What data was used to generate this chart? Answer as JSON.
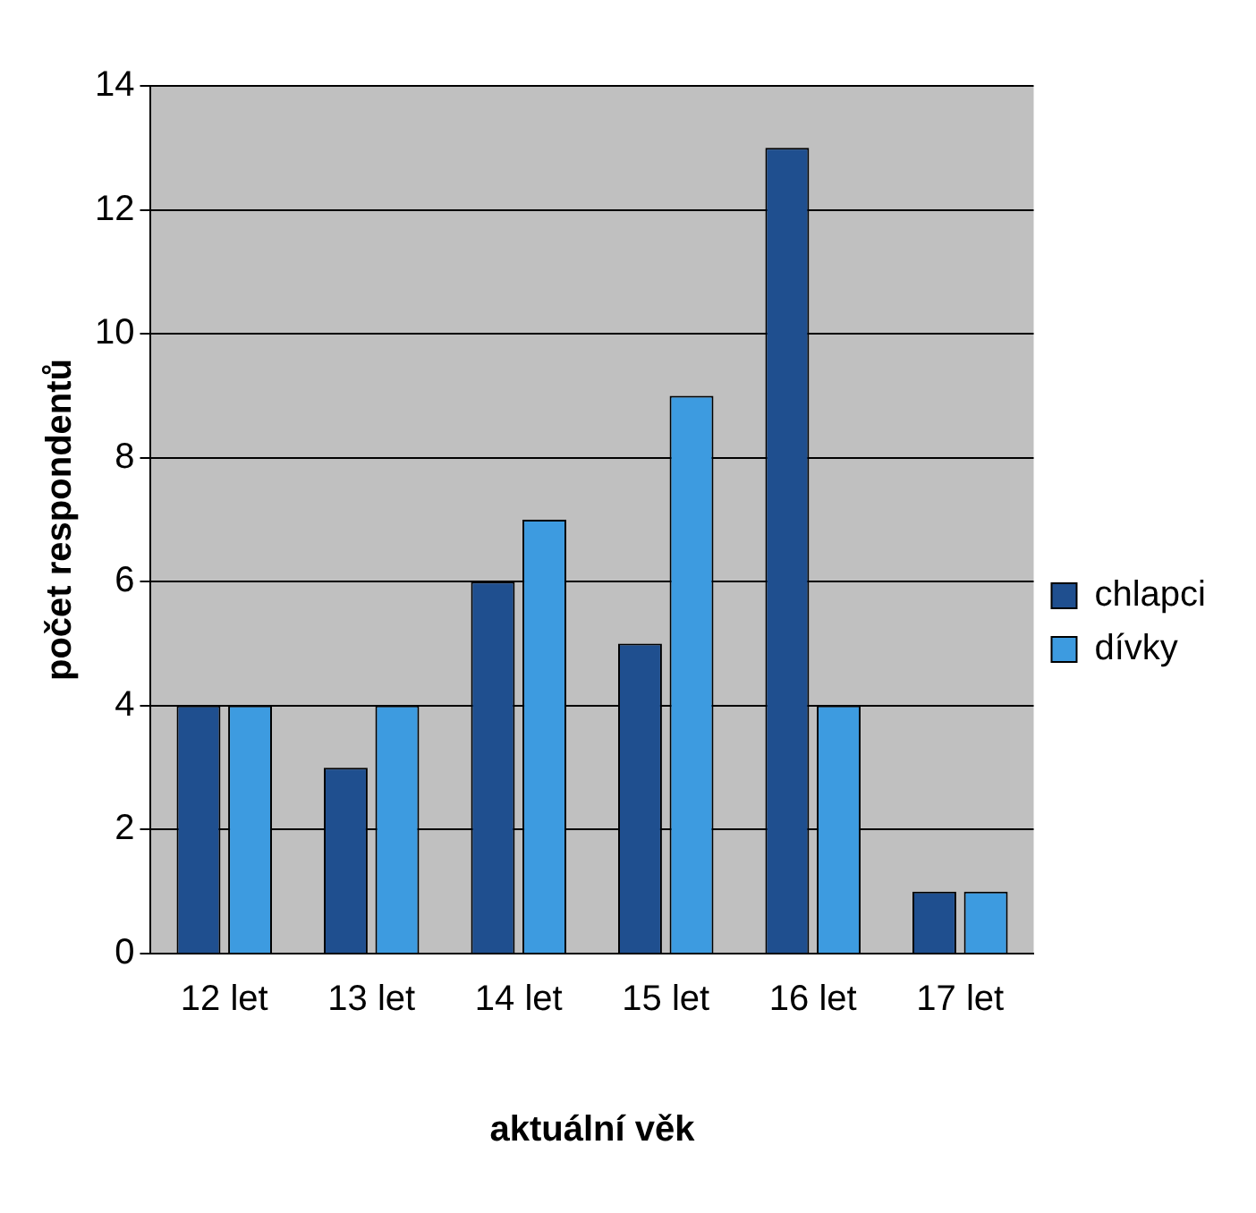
{
  "chart_data": {
    "type": "bar",
    "xlabel": "aktuální věk",
    "ylabel": "počet respondentů",
    "categories": [
      "12 let",
      "13 let",
      "14 let",
      "15 let",
      "16 let",
      "17 let"
    ],
    "series": [
      {
        "name": "chlapci",
        "color": "#1f4f8f",
        "values": [
          4,
          3,
          6,
          5,
          13,
          1
        ]
      },
      {
        "name": "dívky",
        "color": "#3d9be0",
        "values": [
          4,
          4,
          7,
          9,
          4,
          1
        ]
      }
    ],
    "ylim": [
      0,
      14
    ],
    "yticks": [
      0,
      2,
      4,
      6,
      8,
      10,
      12,
      14
    ],
    "grid": "y",
    "legend": "right"
  }
}
